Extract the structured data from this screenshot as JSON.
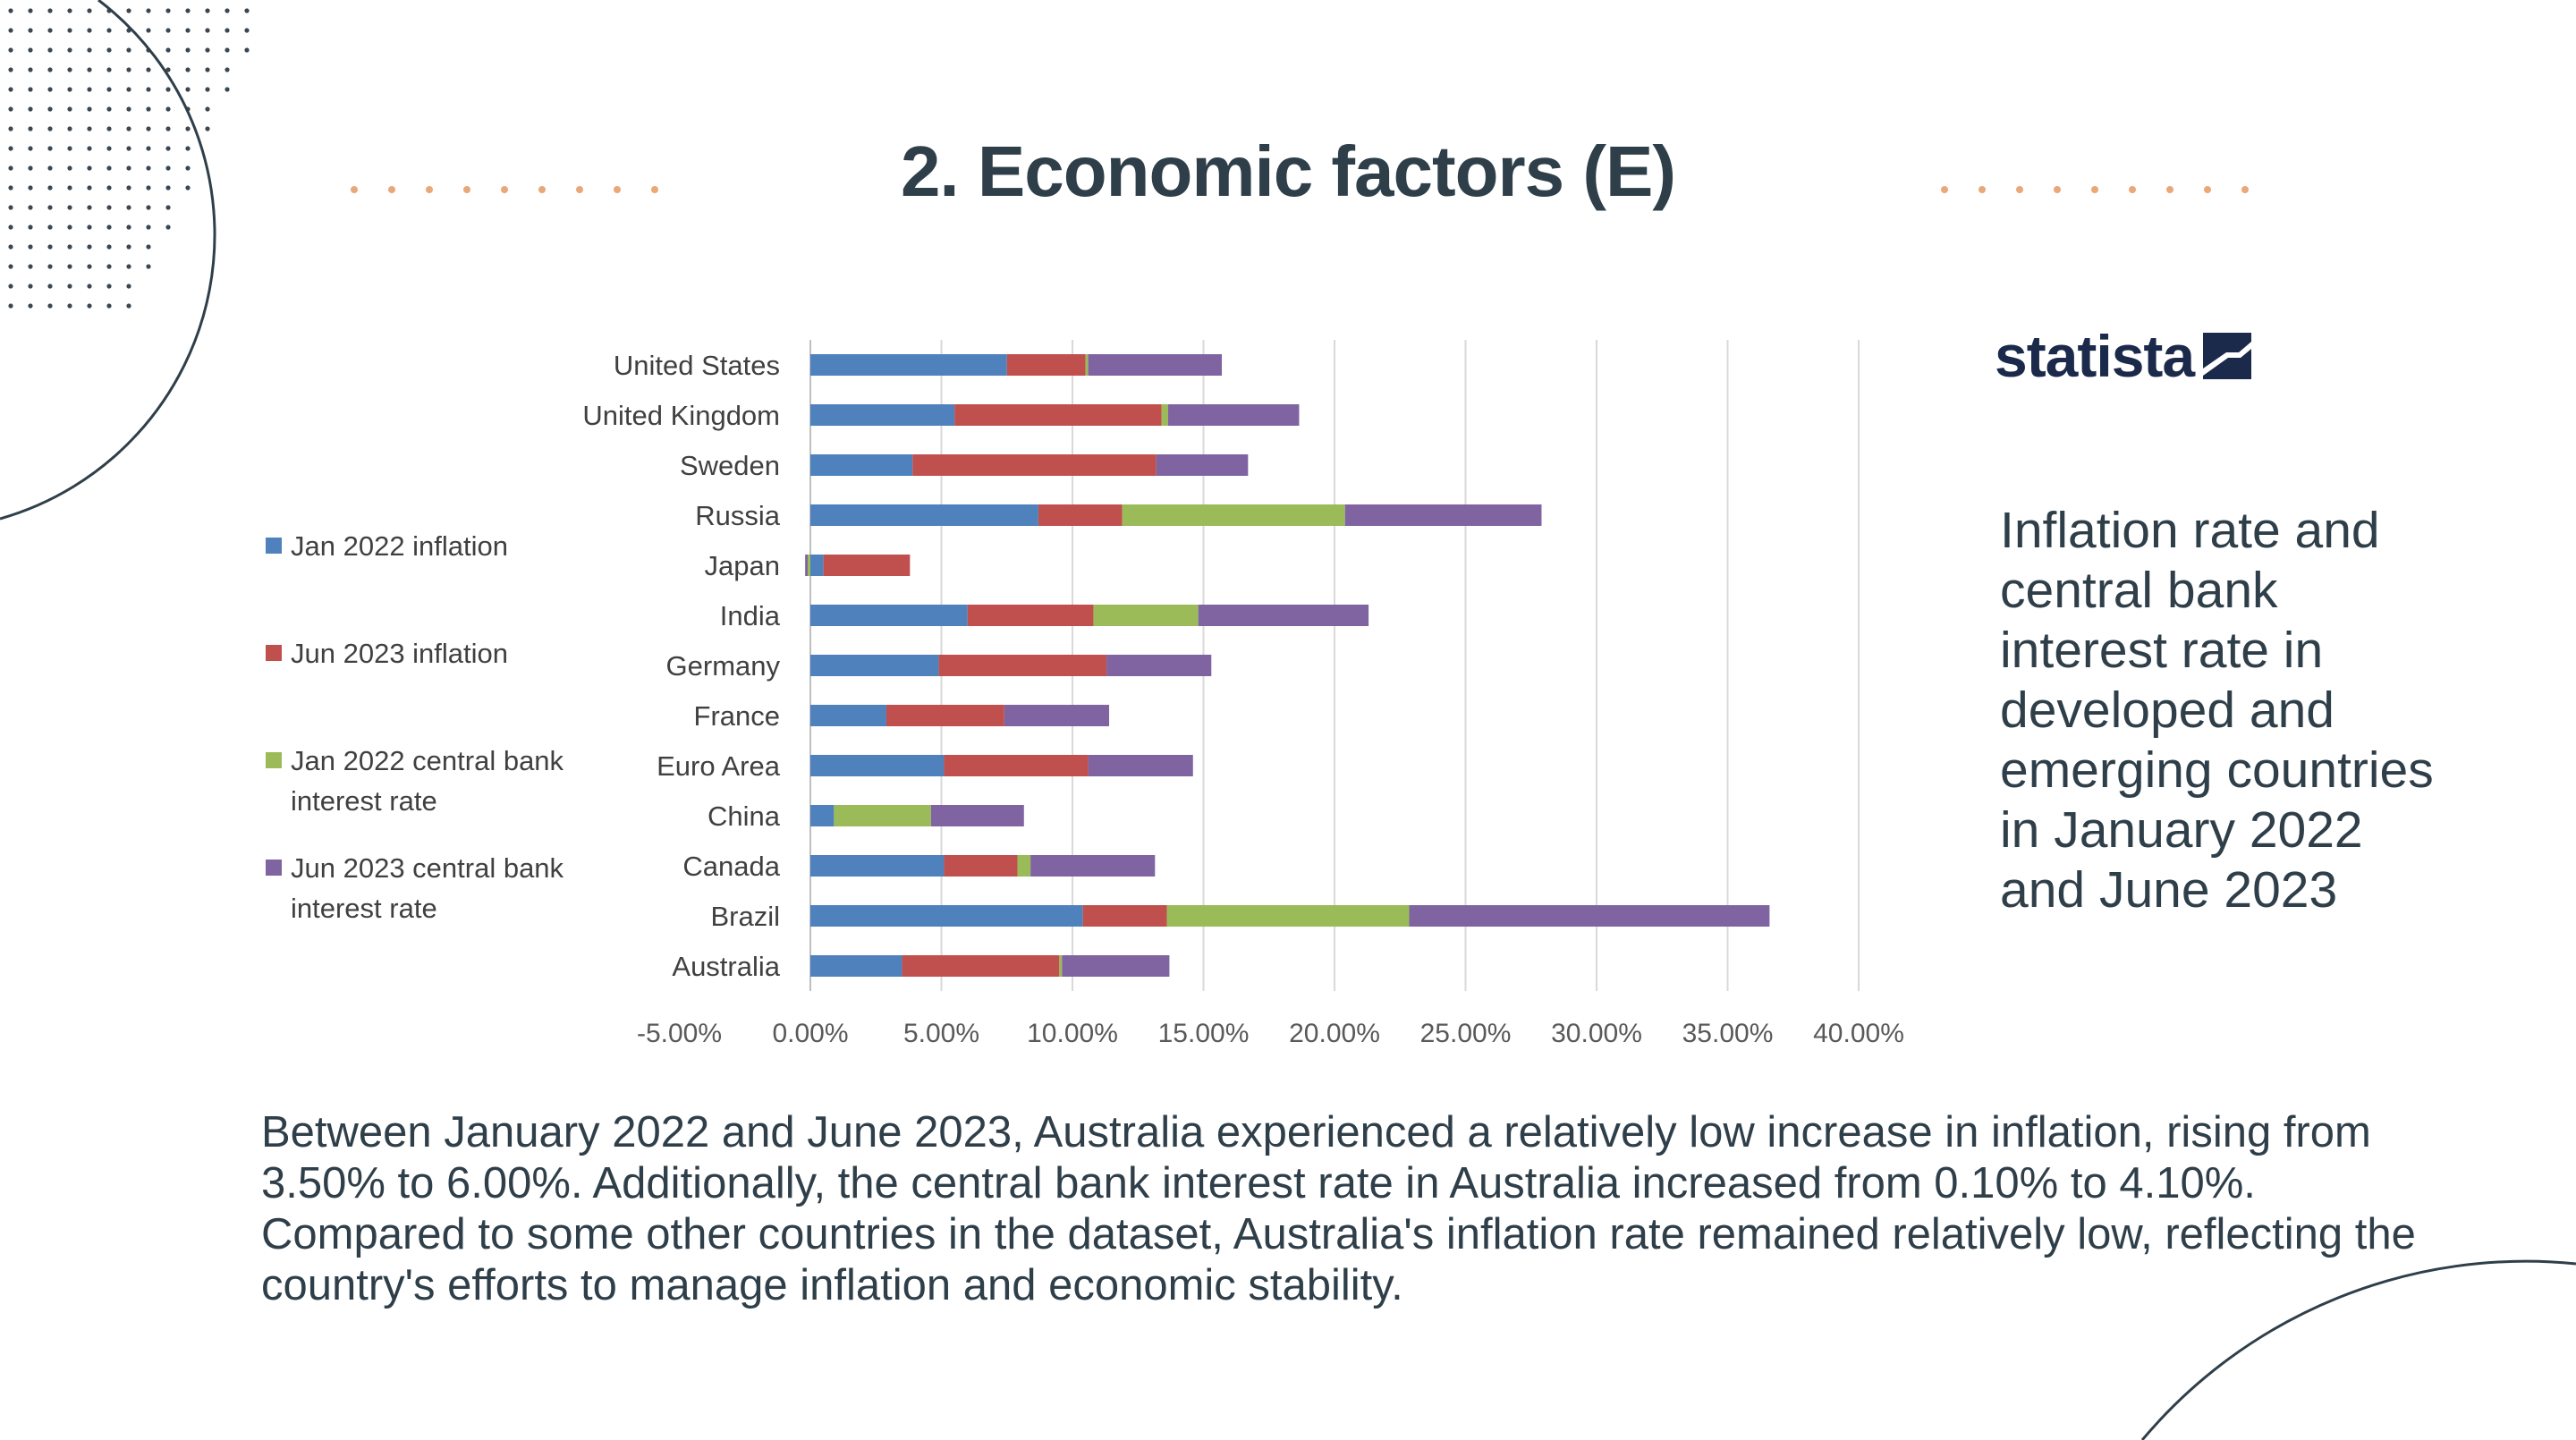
{
  "slide": {
    "title": "2. Economic factors (E)",
    "side_caption": "Inflation rate and central bank interest rate in developed and emerging countries in January 2022 and June 2023",
    "summary": "Between January 2022 and June 2023, Australia experienced a relatively low increase in inflation, rising from 3.50% to 6.00%. Additionally, the central bank interest rate in Australia increased from 0.10% to 4.10%. Compared to some other countries in the dataset, Australia's inflation rate remained relatively low, reflecting the country's efforts to manage inflation and economic stability.",
    "logo": {
      "text": "statista",
      "icon": "statista-logo-icon",
      "color": "#1b2a4a"
    },
    "colors": {
      "text": "#2f3f4a",
      "dots": "#e8a878",
      "lines": "#2f3f4a"
    }
  },
  "chart_data": {
    "type": "bar",
    "orientation": "horizontal",
    "stacked": true,
    "categories": [
      "United States",
      "United Kingdom",
      "Sweden",
      "Russia",
      "Japan",
      "India",
      "Germany",
      "France",
      "Euro Area",
      "China",
      "Canada",
      "Brazil",
      "Australia"
    ],
    "series": [
      {
        "name": "Jan 2022 inflation",
        "color": "#4f81bd",
        "values": [
          7.5,
          5.5,
          3.9,
          8.7,
          0.5,
          6.0,
          4.9,
          2.9,
          5.1,
          0.9,
          5.1,
          10.4,
          3.5
        ]
      },
      {
        "name": "Jun 2023 inflation",
        "color": "#c0504d",
        "values": [
          3.0,
          7.9,
          9.3,
          3.2,
          3.3,
          4.8,
          6.4,
          4.5,
          5.5,
          0.0,
          2.8,
          3.2,
          6.0
        ]
      },
      {
        "name": "Jan 2022 central bank interest rate",
        "color": "#9bbb59",
        "values": [
          0.1,
          0.25,
          0.0,
          8.5,
          -0.1,
          4.0,
          0.0,
          0.0,
          0.0,
          3.7,
          0.5,
          9.25,
          0.1
        ]
      },
      {
        "name": "Jun 2023 central bank interest rate",
        "color": "#8064a2",
        "values": [
          5.1,
          5.0,
          3.5,
          7.5,
          -0.1,
          6.5,
          4.0,
          4.0,
          4.0,
          3.55,
          4.75,
          13.75,
          4.1
        ]
      }
    ],
    "xlim": [
      -5,
      40
    ],
    "xticks": [
      -5,
      0,
      5,
      10,
      15,
      20,
      25,
      30,
      35,
      40
    ],
    "xtick_labels": [
      "-5.00%",
      "0.00%",
      "5.00%",
      "10.00%",
      "15.00%",
      "20.00%",
      "25.00%",
      "30.00%",
      "35.00%",
      "40.00%"
    ],
    "grid": true,
    "legend": "left",
    "title": "",
    "xlabel": "",
    "ylabel": ""
  }
}
